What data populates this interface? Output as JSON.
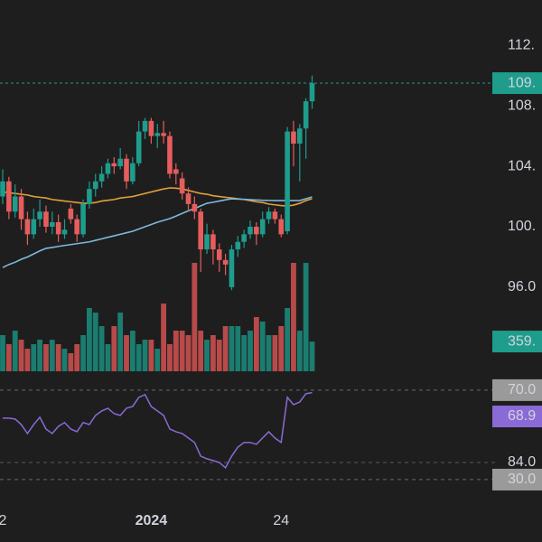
{
  "chart_data": {
    "type": "candlestick",
    "categories": [
      "2",
      null,
      null,
      null,
      null,
      null,
      null,
      null,
      null,
      null,
      null,
      null,
      null,
      null,
      null,
      null,
      null,
      null,
      null,
      null,
      null,
      null,
      null,
      null,
      "2024",
      null,
      null,
      null,
      null,
      null,
      null,
      null,
      null,
      null,
      null,
      null,
      null,
      null,
      null,
      null,
      null,
      null,
      null,
      null,
      null,
      "24",
      null,
      null,
      null,
      null,
      null
    ],
    "open": [
      102.0,
      103.0,
      101.0,
      102.0,
      100.5,
      99.5,
      100.5,
      101.0,
      100.0,
      100.3,
      99.5,
      101.2,
      100.5,
      99.5,
      101.5,
      102.5,
      103.0,
      103.5,
      104.2,
      104.0,
      104.5,
      103.0,
      104.2,
      106.3,
      107.0,
      106.0,
      106.2,
      106.0,
      103.8,
      103.2,
      102.2,
      101.5,
      101.0,
      98.5,
      99.5,
      98.5,
      97.8,
      96.0,
      98.5,
      99.0,
      99.5,
      100.0,
      99.5,
      100.5,
      101.0,
      100.5,
      99.7,
      106.3,
      105.5,
      106.5,
      108.3
    ],
    "high": [
      103.8,
      103.3,
      102.8,
      102.5,
      101.0,
      101.2,
      101.8,
      101.4,
      101.0,
      100.8,
      100.5,
      101.5,
      100.8,
      101.8,
      103.0,
      103.5,
      104.0,
      104.5,
      104.6,
      105.2,
      104.8,
      104.6,
      107.0,
      107.2,
      107.2,
      106.8,
      107.0,
      106.3,
      104.2,
      103.6,
      102.6,
      102.0,
      101.2,
      100.2,
      99.8,
      98.9,
      98.2,
      98.8,
      99.4,
      99.8,
      100.4,
      100.3,
      101.0,
      101.3,
      101.2,
      100.8,
      106.6,
      107.0,
      106.8,
      108.5,
      110.0
    ],
    "low": [
      101.5,
      100.5,
      100.6,
      99.8,
      98.8,
      99.2,
      100.0,
      99.6,
      99.5,
      99.0,
      99.2,
      100.2,
      99.0,
      99.3,
      101.2,
      102.0,
      102.6,
      103.2,
      103.5,
      103.8,
      102.5,
      102.8,
      104.0,
      105.8,
      105.5,
      105.2,
      105.5,
      103.2,
      102.8,
      101.8,
      101.0,
      100.5,
      97.0,
      98.2,
      97.5,
      97.0,
      96.8,
      95.8,
      98.0,
      98.6,
      99.2,
      98.8,
      99.3,
      100.2,
      100.2,
      99.3,
      99.5,
      104.0,
      103.0,
      104.5,
      107.8
    ],
    "close": [
      103.0,
      101.0,
      102.0,
      100.5,
      99.5,
      100.5,
      101.0,
      100.0,
      100.3,
      99.5,
      99.8,
      100.5,
      99.5,
      101.5,
      102.5,
      103.0,
      103.5,
      104.2,
      104.0,
      104.5,
      103.0,
      104.2,
      106.3,
      107.0,
      106.0,
      106.2,
      106.0,
      103.5,
      103.5,
      102.2,
      101.5,
      101.0,
      98.5,
      99.5,
      98.5,
      97.8,
      97.5,
      98.5,
      99.0,
      99.5,
      100.0,
      99.5,
      100.5,
      101.0,
      100.5,
      99.5,
      106.3,
      105.5,
      106.5,
      108.3,
      109.5
    ],
    "up_color": "#1e9c8c",
    "down_color": "#e65d5d",
    "ylim": [
      89.9,
      115
    ],
    "yticks": [
      {
        "value": 112,
        "label": "112."
      },
      {
        "value": 108,
        "label": "108."
      },
      {
        "value": 104,
        "label": "104."
      },
      {
        "value": 100,
        "label": "100."
      },
      {
        "value": 96,
        "label": "96.0"
      }
    ],
    "last_label": "109.",
    "moving_averages": [
      {
        "color": "#e0a03a",
        "values": [
          102.3,
          102.25,
          102.2,
          102.15,
          102.1,
          102.0,
          101.95,
          101.9,
          101.8,
          101.75,
          101.7,
          101.65,
          101.6,
          101.55,
          101.55,
          101.6,
          101.7,
          101.75,
          101.8,
          101.9,
          101.95,
          102.0,
          102.1,
          102.2,
          102.3,
          102.4,
          102.5,
          102.57,
          102.55,
          102.5,
          102.4,
          102.3,
          102.2,
          102.15,
          102.05,
          102.0,
          101.95,
          101.9,
          101.85,
          101.8,
          101.73,
          101.65,
          101.6,
          101.5,
          101.45,
          101.4,
          101.37,
          101.43,
          101.55,
          101.73,
          101.85
        ]
      },
      {
        "color": "#7fb8dc",
        "values": [
          97.3,
          97.5,
          97.65,
          97.85,
          98.0,
          98.2,
          98.4,
          98.57,
          98.63,
          98.7,
          98.76,
          98.82,
          98.88,
          98.94,
          99.0,
          99.1,
          99.2,
          99.3,
          99.4,
          99.5,
          99.6,
          99.7,
          99.85,
          100.0,
          100.15,
          100.3,
          100.42,
          100.54,
          100.7,
          100.88,
          101.05,
          101.2,
          101.38,
          101.55,
          101.62,
          101.7,
          101.78,
          101.85,
          101.83,
          101.81,
          101.79,
          101.77,
          101.75,
          101.74,
          101.73,
          101.73,
          101.73,
          101.73,
          101.73,
          101.85,
          101.97
        ]
      }
    ],
    "volume": {
      "values": [
        436,
        327,
        490,
        381,
        272,
        327,
        381,
        327,
        381,
        327,
        272,
        218,
        327,
        436,
        763,
        708,
        545,
        327,
        545,
        708,
        436,
        490,
        327,
        381,
        381,
        272,
        817,
        327,
        490,
        490,
        436,
        1308,
        490,
        381,
        436,
        381,
        545,
        545,
        545,
        436,
        490,
        654,
        600,
        436,
        436,
        545,
        763,
        1308,
        490,
        1308,
        359
      ],
      "ylim": [
        0,
        4480
      ],
      "up_color": "#1a7d70",
      "down_color": "#b84a4a",
      "last_label": "359."
    },
    "rsi": {
      "color": "#8a6ad6",
      "values": [
        57.5,
        57.5,
        57.1,
        54.6,
        50.6,
        54.6,
        57.9,
        52.6,
        50.6,
        53.8,
        55.5,
        52.6,
        51.4,
        55.5,
        54.6,
        58.7,
        60.7,
        61.9,
        59.5,
        58.7,
        61.9,
        62.7,
        66.8,
        68.0,
        62.7,
        60.7,
        58.7,
        52.6,
        51.4,
        50.6,
        48.6,
        46.6,
        40.5,
        39.3,
        38.5,
        37.7,
        35.3,
        40.5,
        44.5,
        46.6,
        46.6,
        45.8,
        48.6,
        51.4,
        48.6,
        46.6,
        66.8,
        63.5,
        64.7,
        68.4,
        68.9
      ],
      "ylim": [
        22.3,
        74.8
      ],
      "yticks": [
        {
          "value": 70,
          "label": "70.0"
        },
        {
          "value": 30,
          "label": "30.0"
        }
      ],
      "extra_label": "84.0"
    }
  }
}
